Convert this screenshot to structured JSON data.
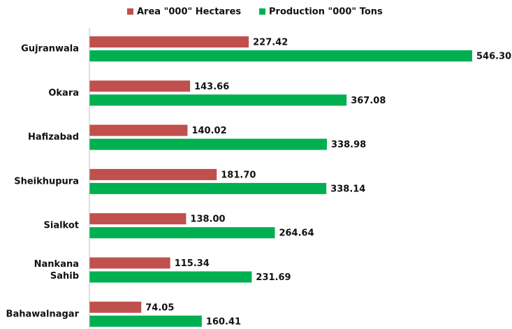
{
  "chart_data": {
    "type": "bar",
    "orientation": "horizontal",
    "categories": [
      "Gujranwala",
      "Okara",
      "Hafizabad",
      "Sheikhupura",
      "Sialkot",
      "Nankana Sahib",
      "Bahawalnagar"
    ],
    "series": [
      {
        "name": "Area \"000\" Hectares",
        "color": "#c0504d",
        "values": [
          227.42,
          143.66,
          140.02,
          181.7,
          138,
          115.34,
          74.05
        ],
        "value_labels": [
          "227.42",
          "143.66",
          "140.02",
          "181.70",
          "138.00",
          "115.34",
          "74.05"
        ]
      },
      {
        "name": "Production \"000\" Tons",
        "color": "#00b050",
        "values": [
          546.3,
          367.08,
          338.98,
          338.14,
          264.64,
          231.69,
          160.41
        ],
        "value_labels": [
          "546.30",
          "367.08",
          "338.98",
          "338.14",
          "264.64",
          "231.69",
          "160.41"
        ]
      }
    ]
  }
}
